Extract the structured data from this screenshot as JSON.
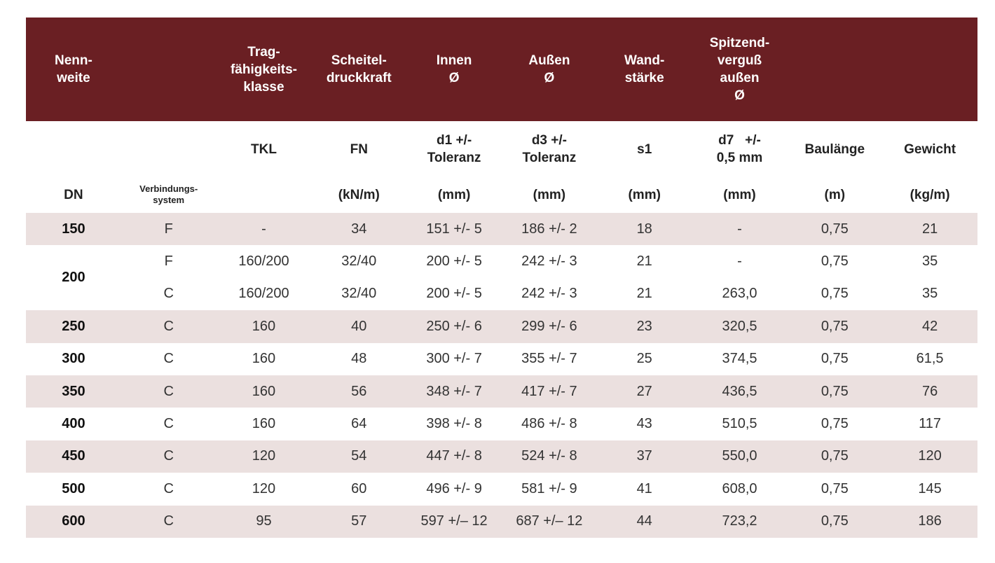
{
  "columns": [
    {
      "title": [
        "Nenn-",
        "weite"
      ],
      "symbol": null,
      "unit": [
        "DN"
      ]
    },
    {
      "title": null,
      "symbol": null,
      "unit": [
        "Verbindungs-",
        "system"
      ]
    },
    {
      "title": [
        "Trag-",
        "fähigkeits-",
        "klasse"
      ],
      "symbol": [
        "TKL"
      ],
      "unit": null
    },
    {
      "title": [
        "Scheitel-",
        "druckkraft"
      ],
      "symbol": [
        "FN"
      ],
      "unit": [
        "(kN/m)"
      ]
    },
    {
      "title": [
        "Innen",
        "Ø"
      ],
      "symbol": [
        "d1 +/-",
        "Toleranz"
      ],
      "unit": [
        "(mm)"
      ]
    },
    {
      "title": [
        "Außen",
        "Ø"
      ],
      "symbol": [
        "d3 +/-",
        "Toleranz"
      ],
      "unit": [
        "(mm)"
      ]
    },
    {
      "title": [
        "Wand-",
        "stärke"
      ],
      "symbol": [
        "s1"
      ],
      "unit": [
        "(mm)"
      ]
    },
    {
      "title": [
        "Spitzend-",
        "verguß",
        "außen",
        "Ø"
      ],
      "symbol": [
        "d7   +/-",
        "0,5 mm"
      ],
      "unit": [
        "(mm)"
      ]
    },
    {
      "title": null,
      "symbol": [
        "Baulänge"
      ],
      "unit": [
        "(m)"
      ]
    },
    {
      "title": null,
      "symbol": [
        "Gewicht"
      ],
      "unit": [
        "(kg/m)"
      ]
    }
  ],
  "groups": [
    {
      "dn": "150",
      "rows": [
        [
          "F",
          "-",
          "34",
          "151 +/- 5",
          "186 +/- 2",
          "18",
          "-",
          "0,75",
          "21"
        ]
      ]
    },
    {
      "dn": "200",
      "rows": [
        [
          "F",
          "160/200",
          "32/40",
          "200 +/- 5",
          "242 +/- 3",
          "21",
          "-",
          "0,75",
          "35"
        ],
        [
          "C",
          "160/200",
          "32/40",
          "200 +/- 5",
          "242 +/- 3",
          "21",
          "263,0",
          "0,75",
          "35"
        ]
      ]
    },
    {
      "dn": "250",
      "rows": [
        [
          "C",
          "160",
          "40",
          "250 +/- 6",
          "299 +/- 6",
          "23",
          "320,5",
          "0,75",
          "42"
        ]
      ]
    },
    {
      "dn": "300",
      "rows": [
        [
          "C",
          "160",
          "48",
          "300 +/- 7",
          "355 +/- 7",
          "25",
          "374,5",
          "0,75",
          "61,5"
        ]
      ]
    },
    {
      "dn": "350",
      "rows": [
        [
          "C",
          "160",
          "56",
          "348 +/- 7",
          "417 +/- 7",
          "27",
          "436,5",
          "0,75",
          "76"
        ]
      ]
    },
    {
      "dn": "400",
      "rows": [
        [
          "C",
          "160",
          "64",
          "398 +/- 8",
          "486 +/- 8",
          "43",
          "510,5",
          "0,75",
          "117"
        ]
      ]
    },
    {
      "dn": "450",
      "rows": [
        [
          "C",
          "120",
          "54",
          "447 +/- 8",
          "524 +/- 8",
          "37",
          "550,0",
          "0,75",
          "120"
        ]
      ]
    },
    {
      "dn": "500",
      "rows": [
        [
          "C",
          "120",
          "60",
          "496 +/- 9",
          "581 +/- 9",
          "41",
          "608,0",
          "0,75",
          "145"
        ]
      ]
    },
    {
      "dn": "600",
      "rows": [
        [
          "C",
          "95",
          "57",
          "597 +/– 12",
          "687 +/– 12",
          "44",
          "723,2",
          "0,75",
          "186"
        ]
      ]
    }
  ]
}
